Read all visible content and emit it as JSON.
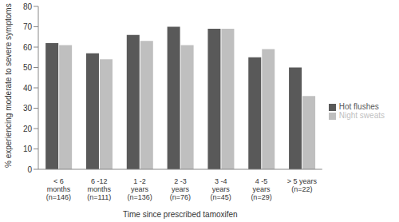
{
  "chart_data": {
    "type": "bar",
    "categories": [
      "< 6 months (n=146)",
      "6 -12 months (n=111)",
      "1 -2 years (n=136)",
      "2 -3 years (n=76)",
      "3 -4 years (n=45)",
      "4 -5 years (n=29)",
      "> 5 years (n=22)"
    ],
    "series": [
      {
        "name": "Hot flushes",
        "color": "#595959",
        "values": [
          62,
          57,
          66,
          70,
          69,
          55,
          50
        ]
      },
      {
        "name": "Night sweats",
        "color": "#bfbfbf",
        "values": [
          61,
          54,
          63,
          61,
          69,
          59,
          36
        ]
      }
    ],
    "x_label": "Time since prescribed tamoxifen",
    "y_label": "% experiencing moderate to severe symptoms",
    "ylim": [
      0,
      80
    ],
    "yticks": [
      0,
      10,
      20,
      30,
      40,
      50,
      60,
      70,
      80
    ],
    "grid": false,
    "legend": "right"
  }
}
